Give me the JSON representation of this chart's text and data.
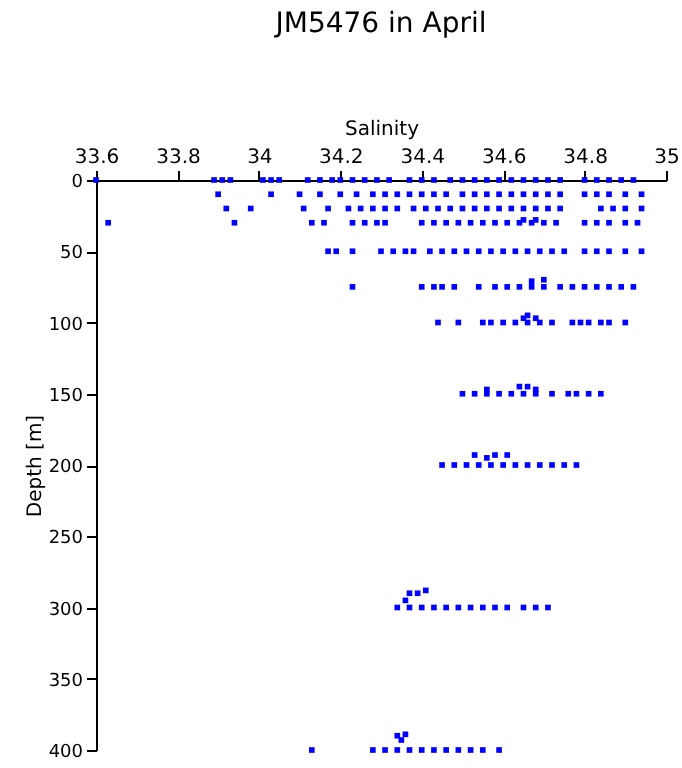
{
  "chart_data": {
    "type": "scatter",
    "title": "JM5476 in April",
    "xlabel": "Salinity",
    "ylabel": "Depth [m]",
    "xlim": [
      33.6,
      35
    ],
    "xticks": [
      33.6,
      33.8,
      34,
      34.2,
      34.4,
      34.6,
      34.8,
      35
    ],
    "ylim": [
      400,
      0
    ],
    "yticks": [
      0,
      50,
      100,
      150,
      200,
      250,
      300,
      350,
      400
    ],
    "grid": false,
    "legend": false,
    "marker": "square",
    "series": [
      {
        "color": "#0000ff",
        "x": [
          33.6,
          33.89,
          33.91,
          33.93,
          34.01,
          34.03,
          34.05,
          34.12,
          34.15,
          34.18,
          34.2,
          34.23,
          34.26,
          34.29,
          34.32,
          34.37,
          34.4,
          34.43,
          34.47,
          34.5,
          34.53,
          34.56,
          34.59,
          34.62,
          34.65,
          34.68,
          34.71,
          34.74,
          34.8,
          34.83,
          34.86,
          34.89,
          34.92
        ],
        "values": [
          0,
          0,
          0,
          0,
          0,
          0,
          0,
          0,
          0,
          0,
          0,
          0,
          0,
          0,
          0,
          0,
          0,
          0,
          0,
          0,
          0,
          0,
          0,
          0,
          0,
          0,
          0,
          0,
          0,
          0,
          0,
          0,
          0
        ]
      },
      {
        "color": "#0000ff",
        "x": [
          33.9,
          34.03,
          34.1,
          34.15,
          34.2,
          34.24,
          34.28,
          34.31,
          34.34,
          34.37,
          34.4,
          34.43,
          34.46,
          34.5,
          34.53,
          34.56,
          34.59,
          34.62,
          34.65,
          34.68,
          34.71,
          34.74,
          34.8,
          34.83,
          34.86,
          34.9,
          34.94
        ],
        "values": [
          10,
          10,
          10,
          10,
          10,
          10,
          10,
          10,
          10,
          10,
          10,
          10,
          10,
          10,
          10,
          10,
          10,
          10,
          10,
          10,
          10,
          10,
          10,
          10,
          10,
          10,
          10
        ]
      },
      {
        "color": "#0000ff",
        "x": [
          33.92,
          33.98,
          34.11,
          34.17,
          34.22,
          34.25,
          34.28,
          34.31,
          34.34,
          34.38,
          34.41,
          34.44,
          34.47,
          34.5,
          34.53,
          34.56,
          34.59,
          34.62,
          34.65,
          34.68,
          34.71,
          34.74,
          34.84,
          34.87,
          34.9,
          34.94
        ],
        "values": [
          20,
          20,
          20,
          20,
          20,
          20,
          20,
          20,
          20,
          20,
          20,
          20,
          20,
          20,
          20,
          20,
          20,
          20,
          20,
          20,
          20,
          20,
          20,
          20,
          20,
          20
        ]
      },
      {
        "color": "#0000ff",
        "x": [
          33.63,
          33.94,
          34.13,
          34.16,
          34.23,
          34.26,
          34.29,
          34.31,
          34.4,
          34.43,
          34.46,
          34.49,
          34.52,
          34.55,
          34.58,
          34.61,
          34.64,
          34.67,
          34.7,
          34.73,
          34.8,
          34.83,
          34.86,
          34.9,
          34.93,
          34.65,
          34.68
        ],
        "values": [
          30,
          30,
          30,
          30,
          30,
          30,
          30,
          30,
          30,
          30,
          30,
          30,
          30,
          30,
          30,
          30,
          30,
          30,
          30,
          30,
          30,
          30,
          30,
          30,
          30,
          28,
          28
        ]
      },
      {
        "color": "#0000ff",
        "x": [
          34.17,
          34.19,
          34.23,
          34.3,
          34.33,
          34.36,
          34.38,
          34.42,
          34.45,
          34.48,
          34.51,
          34.54,
          34.57,
          34.6,
          34.63,
          34.66,
          34.69,
          34.72,
          34.75,
          34.8,
          34.83,
          34.86,
          34.9,
          34.94
        ],
        "values": [
          50,
          50,
          50,
          50,
          50,
          50,
          50,
          50,
          50,
          50,
          50,
          50,
          50,
          50,
          50,
          50,
          50,
          50,
          50,
          50,
          50,
          50,
          50,
          50
        ]
      },
      {
        "color": "#0000ff",
        "x": [
          34.23,
          34.4,
          34.43,
          34.45,
          34.48,
          34.54,
          34.58,
          34.61,
          34.64,
          34.67,
          34.7,
          34.74,
          34.77,
          34.8,
          34.83,
          34.86,
          34.89,
          34.92,
          34.67,
          34.7
        ],
        "values": [
          75,
          75,
          75,
          75,
          75,
          75,
          75,
          75,
          75,
          75,
          75,
          75,
          75,
          75,
          75,
          75,
          75,
          75,
          71,
          70
        ]
      },
      {
        "color": "#0000ff",
        "x": [
          34.44,
          34.49,
          34.55,
          34.57,
          34.6,
          34.63,
          34.66,
          34.69,
          34.72,
          34.77,
          34.79,
          34.81,
          34.84,
          34.86,
          34.9,
          34.65,
          34.66,
          34.68
        ],
        "values": [
          100,
          100,
          100,
          100,
          100,
          100,
          100,
          100,
          100,
          100,
          100,
          100,
          100,
          100,
          100,
          97,
          95,
          97
        ]
      },
      {
        "color": "#0000ff",
        "x": [
          34.5,
          34.53,
          34.56,
          34.59,
          34.62,
          34.65,
          34.68,
          34.72,
          34.76,
          34.78,
          34.81,
          34.84,
          34.56,
          34.64,
          34.66,
          34.68
        ],
        "values": [
          150,
          150,
          150,
          150,
          150,
          150,
          150,
          150,
          150,
          150,
          150,
          150,
          147,
          145,
          145,
          147
        ]
      },
      {
        "color": "#0000ff",
        "x": [
          34.45,
          34.48,
          34.51,
          34.54,
          34.57,
          34.6,
          34.63,
          34.66,
          34.69,
          34.72,
          34.75,
          34.78,
          34.53,
          34.56,
          34.58,
          34.61
        ],
        "values": [
          200,
          200,
          200,
          200,
          200,
          200,
          200,
          200,
          200,
          200,
          200,
          200,
          193,
          195,
          193,
          193
        ]
      },
      {
        "color": "#0000ff",
        "x": [
          34.34,
          34.37,
          34.4,
          34.43,
          34.46,
          34.49,
          34.52,
          34.55,
          34.58,
          34.61,
          34.65,
          34.68,
          34.71,
          34.37,
          34.39,
          34.41,
          34.36
        ],
        "values": [
          300,
          300,
          300,
          300,
          300,
          300,
          300,
          300,
          300,
          300,
          300,
          300,
          300,
          290,
          290,
          288,
          295
        ]
      },
      {
        "color": "#0000ff",
        "x": [
          34.13,
          34.28,
          34.31,
          34.34,
          34.37,
          34.4,
          34.43,
          34.46,
          34.49,
          34.52,
          34.55,
          34.59,
          34.34,
          34.36,
          34.35
        ],
        "values": [
          400,
          400,
          400,
          400,
          400,
          400,
          400,
          400,
          400,
          400,
          400,
          400,
          390,
          389,
          393
        ]
      }
    ]
  }
}
